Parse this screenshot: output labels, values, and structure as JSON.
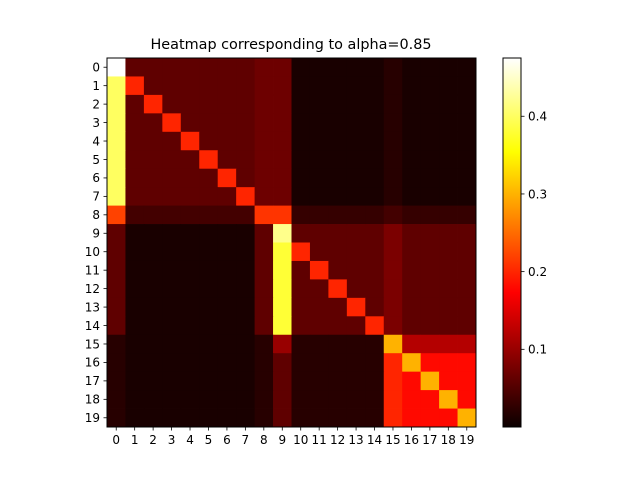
{
  "chart_data": {
    "type": "heatmap",
    "title": "Heatmap corresponding to alpha=0.85",
    "colormap": "hot",
    "vmin": 0.0,
    "vmax": 0.475,
    "x_ticks": [
      "0",
      "1",
      "2",
      "3",
      "4",
      "5",
      "6",
      "7",
      "8",
      "9",
      "10",
      "11",
      "12",
      "13",
      "14",
      "15",
      "16",
      "17",
      "18",
      "19"
    ],
    "y_ticks": [
      "0",
      "1",
      "2",
      "3",
      "4",
      "5",
      "6",
      "7",
      "8",
      "9",
      "10",
      "11",
      "12",
      "13",
      "14",
      "15",
      "16",
      "17",
      "18",
      "19"
    ],
    "colorbar_ticks": [
      {
        "value": 0.1,
        "label": "0.1"
      },
      {
        "value": 0.2,
        "label": "0.2"
      },
      {
        "value": 0.3,
        "label": "0.3"
      },
      {
        "value": 0.4,
        "label": "0.4"
      }
    ],
    "matrix": [
      [
        0.475,
        0.06,
        0.06,
        0.06,
        0.06,
        0.06,
        0.06,
        0.06,
        0.07,
        0.07,
        0.01,
        0.01,
        0.01,
        0.01,
        0.01,
        0.02,
        0.01,
        0.01,
        0.01,
        0.01
      ],
      [
        0.4,
        0.2,
        0.06,
        0.06,
        0.06,
        0.06,
        0.06,
        0.06,
        0.07,
        0.07,
        0.01,
        0.01,
        0.01,
        0.01,
        0.01,
        0.02,
        0.01,
        0.01,
        0.01,
        0.01
      ],
      [
        0.4,
        0.06,
        0.2,
        0.06,
        0.06,
        0.06,
        0.06,
        0.06,
        0.07,
        0.07,
        0.01,
        0.01,
        0.01,
        0.01,
        0.01,
        0.02,
        0.01,
        0.01,
        0.01,
        0.01
      ],
      [
        0.4,
        0.06,
        0.06,
        0.2,
        0.06,
        0.06,
        0.06,
        0.06,
        0.07,
        0.07,
        0.01,
        0.01,
        0.01,
        0.01,
        0.01,
        0.02,
        0.01,
        0.01,
        0.01,
        0.01
      ],
      [
        0.4,
        0.06,
        0.06,
        0.06,
        0.2,
        0.06,
        0.06,
        0.06,
        0.07,
        0.07,
        0.01,
        0.01,
        0.01,
        0.01,
        0.01,
        0.02,
        0.01,
        0.01,
        0.01,
        0.01
      ],
      [
        0.4,
        0.06,
        0.06,
        0.06,
        0.06,
        0.2,
        0.06,
        0.06,
        0.07,
        0.07,
        0.01,
        0.01,
        0.01,
        0.01,
        0.01,
        0.02,
        0.01,
        0.01,
        0.01,
        0.01
      ],
      [
        0.4,
        0.06,
        0.06,
        0.06,
        0.06,
        0.06,
        0.2,
        0.06,
        0.07,
        0.07,
        0.01,
        0.01,
        0.01,
        0.01,
        0.01,
        0.02,
        0.01,
        0.01,
        0.01,
        0.01
      ],
      [
        0.4,
        0.06,
        0.06,
        0.06,
        0.06,
        0.06,
        0.06,
        0.2,
        0.07,
        0.07,
        0.01,
        0.01,
        0.01,
        0.01,
        0.01,
        0.02,
        0.01,
        0.01,
        0.01,
        0.01
      ],
      [
        0.22,
        0.04,
        0.04,
        0.04,
        0.04,
        0.04,
        0.04,
        0.04,
        0.21,
        0.21,
        0.03,
        0.03,
        0.03,
        0.03,
        0.03,
        0.04,
        0.03,
        0.03,
        0.03,
        0.03
      ],
      [
        0.06,
        0.01,
        0.01,
        0.01,
        0.01,
        0.01,
        0.01,
        0.01,
        0.06,
        0.42,
        0.06,
        0.06,
        0.06,
        0.06,
        0.06,
        0.08,
        0.06,
        0.06,
        0.06,
        0.06
      ],
      [
        0.06,
        0.01,
        0.01,
        0.01,
        0.01,
        0.01,
        0.01,
        0.01,
        0.06,
        0.38,
        0.2,
        0.06,
        0.06,
        0.06,
        0.06,
        0.08,
        0.06,
        0.06,
        0.06,
        0.06
      ],
      [
        0.06,
        0.01,
        0.01,
        0.01,
        0.01,
        0.01,
        0.01,
        0.01,
        0.06,
        0.38,
        0.06,
        0.2,
        0.06,
        0.06,
        0.06,
        0.08,
        0.06,
        0.06,
        0.06,
        0.06
      ],
      [
        0.06,
        0.01,
        0.01,
        0.01,
        0.01,
        0.01,
        0.01,
        0.01,
        0.06,
        0.38,
        0.06,
        0.06,
        0.2,
        0.06,
        0.06,
        0.08,
        0.06,
        0.06,
        0.06,
        0.06
      ],
      [
        0.06,
        0.01,
        0.01,
        0.01,
        0.01,
        0.01,
        0.01,
        0.01,
        0.06,
        0.38,
        0.06,
        0.06,
        0.06,
        0.2,
        0.06,
        0.08,
        0.06,
        0.06,
        0.06,
        0.06
      ],
      [
        0.06,
        0.01,
        0.01,
        0.01,
        0.01,
        0.01,
        0.01,
        0.01,
        0.06,
        0.38,
        0.06,
        0.06,
        0.06,
        0.06,
        0.2,
        0.08,
        0.06,
        0.06,
        0.06,
        0.06
      ],
      [
        0.02,
        0.01,
        0.01,
        0.01,
        0.01,
        0.01,
        0.01,
        0.01,
        0.02,
        0.1,
        0.02,
        0.02,
        0.02,
        0.02,
        0.02,
        0.3,
        0.12,
        0.12,
        0.12,
        0.12
      ],
      [
        0.02,
        0.01,
        0.01,
        0.01,
        0.01,
        0.01,
        0.01,
        0.01,
        0.02,
        0.06,
        0.02,
        0.02,
        0.02,
        0.02,
        0.02,
        0.2,
        0.3,
        0.18,
        0.18,
        0.18
      ],
      [
        0.02,
        0.01,
        0.01,
        0.01,
        0.01,
        0.01,
        0.01,
        0.01,
        0.02,
        0.06,
        0.02,
        0.02,
        0.02,
        0.02,
        0.02,
        0.2,
        0.18,
        0.3,
        0.18,
        0.18
      ],
      [
        0.02,
        0.01,
        0.01,
        0.01,
        0.01,
        0.01,
        0.01,
        0.01,
        0.02,
        0.06,
        0.02,
        0.02,
        0.02,
        0.02,
        0.02,
        0.2,
        0.18,
        0.18,
        0.3,
        0.18
      ],
      [
        0.02,
        0.01,
        0.01,
        0.01,
        0.01,
        0.01,
        0.01,
        0.01,
        0.02,
        0.06,
        0.02,
        0.02,
        0.02,
        0.02,
        0.02,
        0.2,
        0.18,
        0.18,
        0.18,
        0.3
      ]
    ]
  }
}
